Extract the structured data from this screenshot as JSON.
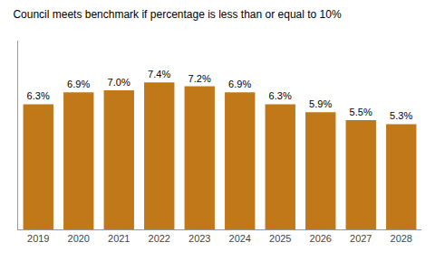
{
  "chart_data": {
    "type": "bar",
    "title": "Council meets benchmark if percentage is less than or equal to 10%",
    "categories": [
      "2019",
      "2020",
      "2021",
      "2022",
      "2023",
      "2024",
      "2025",
      "2026",
      "2027",
      "2028"
    ],
    "values": [
      6.3,
      6.9,
      7.0,
      7.4,
      7.2,
      6.9,
      6.3,
      5.9,
      5.5,
      5.3
    ],
    "value_labels": [
      "6.3%",
      "6.9%",
      "7.0%",
      "7.4%",
      "7.2%",
      "6.9%",
      "6.3%",
      "5.9%",
      "5.5%",
      "5.3%"
    ],
    "color": "#C07818",
    "ylim": [
      0,
      9.5
    ],
    "yticks": [],
    "grid": false,
    "data_labels": true,
    "tick_labels": "x"
  }
}
